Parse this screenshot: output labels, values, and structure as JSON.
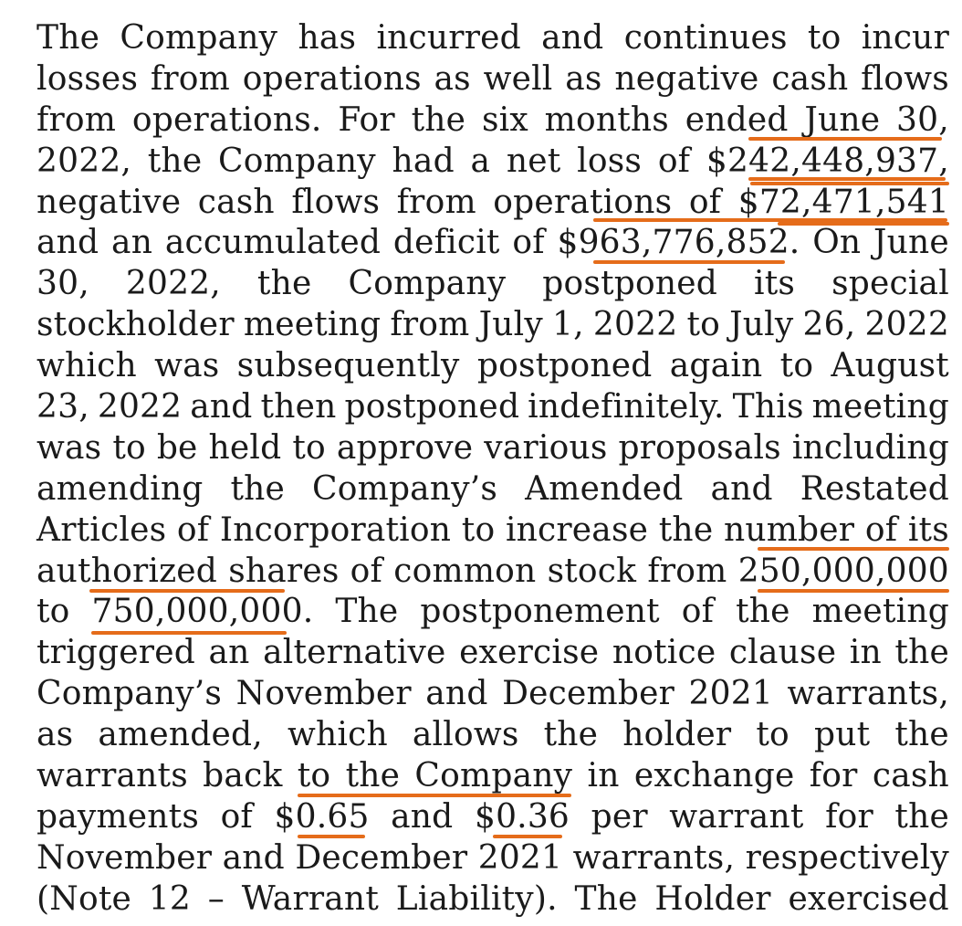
{
  "paragraph": {
    "lines": [
      "The Company has incurred and continues to incur",
      "losses from operations as well as negative cash flows",
      "from operations. For the six months ended June 30,",
      "2022, the Company had a net loss of $242,448,937,",
      "negative cash flows from operations of $72,471,541",
      "and an accumulated deficit of $963,776,852. On June",
      "30, 2022, the Company postponed its special",
      "stockholder meeting from July 1, 2022 to July 26, 2022",
      "which was subsequently postponed again to August",
      "23, 2022 and then postponed indefinitely. This meeting",
      "was to be held to approve various proposals including",
      "amending the Company’s Amended and Restated",
      "Articles of Incorporation to increase the number of its",
      "authorized shares of common stock from 250,000,000",
      "to 750,000,000. The postponement of the meeting",
      "triggered an alternative exercise notice clause in the",
      "Company’s November and December 2021 warrants,",
      "as amended, which allows the holder to put the",
      "warrants back to the Company in exchange for cash",
      "payments of $0.65 and $0.36 per warrant for the",
      "November and December 2021 warrants, respectively",
      "(Note 12 – Warrant Liability). The Holder exercised"
    ]
  },
  "highlight_color": "#e56c1a"
}
